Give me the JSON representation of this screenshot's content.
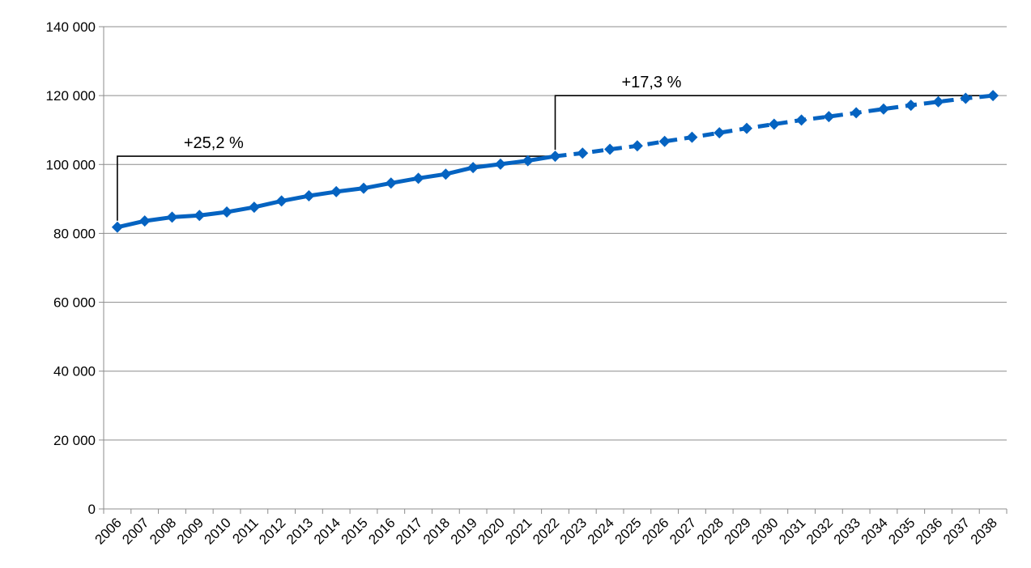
{
  "chart_data": {
    "type": "line",
    "title": "",
    "xlabel": "",
    "ylabel": "",
    "ylim": [
      0,
      140000
    ],
    "yticks": [
      0,
      20000,
      40000,
      60000,
      80000,
      100000,
      120000,
      140000
    ],
    "ytick_labels": [
      "0",
      "20 000",
      "40 000",
      "60 000",
      "80 000",
      "100 000",
      "120 000",
      "140 000"
    ],
    "grid": "horizontal",
    "legend": "none",
    "series_color": "#0563C1",
    "categories": [
      "2006",
      "2007",
      "2008",
      "2009",
      "2010",
      "2011",
      "2012",
      "2013",
      "2014",
      "2015",
      "2016",
      "2017",
      "2018",
      "2019",
      "2020",
      "2021",
      "2022",
      "2023",
      "2024",
      "2025",
      "2026",
      "2027",
      "2028",
      "2029",
      "2030",
      "2031",
      "2032",
      "2033",
      "2034",
      "2035",
      "2036",
      "2037",
      "2038"
    ],
    "series": [
      {
        "values": [
          81800,
          83600,
          84700,
          85200,
          86200,
          87600,
          89400,
          90900,
          92100,
          93100,
          94600,
          96000,
          97200,
          99100,
          100100,
          101100,
          102400,
          103300,
          104400,
          105400,
          106700,
          107900,
          109200,
          110500,
          111700,
          112900,
          113900,
          115000,
          116100,
          117200,
          118200,
          119200,
          120000
        ],
        "style_by_year": {
          "solid_until": "2022",
          "dashed_from": "2022"
        }
      }
    ],
    "annotations": [
      {
        "text": "+25,2 %",
        "from": "2006",
        "to": "2022"
      },
      {
        "text": "+17,3 %",
        "from": "2022",
        "to": "2038"
      }
    ]
  }
}
